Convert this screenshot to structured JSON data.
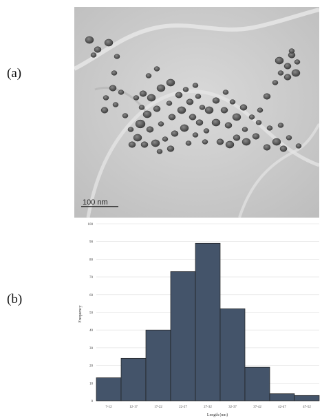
{
  "panels": {
    "a_label": "(a)",
    "b_label": "(b)"
  },
  "micrograph": {
    "scale_bar_label": "100 nm",
    "background_color": "#cfcfcf",
    "particle_color": "#4a4a4a"
  },
  "chart_data": {
    "type": "bar",
    "categories": [
      "7-12",
      "12-17",
      "17-22",
      "22-27",
      "27-32",
      "32-37",
      "37-42",
      "42-47",
      "47-52"
    ],
    "values": [
      13,
      24,
      40,
      73,
      89,
      52,
      19,
      4,
      3
    ],
    "xlabel": "Length (nm)",
    "ylabel": "Frequency",
    "ylim": [
      0,
      100
    ],
    "yticks": [
      0,
      10,
      20,
      30,
      40,
      50,
      60,
      70,
      80,
      90,
      100
    ],
    "grid": true,
    "bar_color": "#44546a"
  }
}
